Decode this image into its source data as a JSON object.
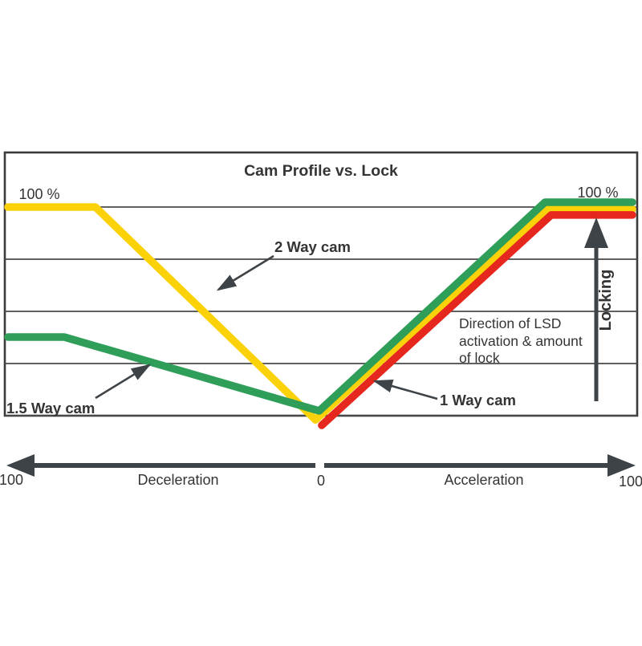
{
  "chart_data": {
    "type": "line",
    "title": "Cam Profile vs. Lock",
    "x_axis": {
      "left_end_label": "100",
      "center_label": "0",
      "right_end_label": "100",
      "left_region_label": "Deceleration",
      "right_region_label": "Acceleration",
      "range": [
        -100,
        100
      ],
      "grid": "off"
    },
    "y_axis": {
      "top_left_label": "100 %",
      "top_right_label": "100 %",
      "range_pct": [
        0,
        100
      ],
      "gridlines_pct": [
        0,
        25,
        50,
        75,
        100
      ],
      "grid": "on"
    },
    "series": [
      {
        "name": "2 Way cam",
        "color": "#fbd108",
        "points": [
          [
            -100,
            100
          ],
          [
            -72,
            100
          ],
          [
            -1.5,
            -2
          ],
          [
            73,
            99
          ],
          [
            100,
            99
          ]
        ]
      },
      {
        "name": "1.5 Way cam",
        "color": "#2f9e58",
        "points": [
          [
            -100,
            37.7
          ],
          [
            -82,
            37.7
          ],
          [
            -0.3,
            2.3
          ],
          [
            72,
            102.3
          ],
          [
            100,
            102.3
          ]
        ]
      },
      {
        "name": "1 Way cam",
        "color": "#e5271d",
        "points": [
          [
            0.5,
            -4.6
          ],
          [
            74,
            96.2
          ],
          [
            100,
            96.2
          ]
        ]
      }
    ],
    "legend_position": "none",
    "annotations": [
      "2 Way cam",
      "1.5 Way cam",
      "1 Way cam",
      "Direction of LSD activation & amount of lock",
      "Locking"
    ]
  },
  "labels": {
    "title": "Cam Profile vs. Lock",
    "pct_left": "100 %",
    "pct_right": "100 %",
    "callout_2way": "2 Way cam",
    "callout_15way": "1.5 Way cam",
    "callout_1way": "1 Way cam",
    "direction_line1": "Direction of LSD",
    "direction_line2": "activation & amount",
    "direction_line3": "of lock",
    "locking": "Locking",
    "axis_left_value": "100",
    "axis_decel": "Deceleration",
    "axis_zero": "0",
    "axis_accel": "Acceleration",
    "axis_right_value": "100"
  },
  "colors": {
    "yellow": "#fbd108",
    "green": "#2f9e58",
    "red": "#e5271d",
    "arrow_gray": "#3e4347",
    "grid_gray": "#4a4a4a",
    "text": "#343434"
  }
}
